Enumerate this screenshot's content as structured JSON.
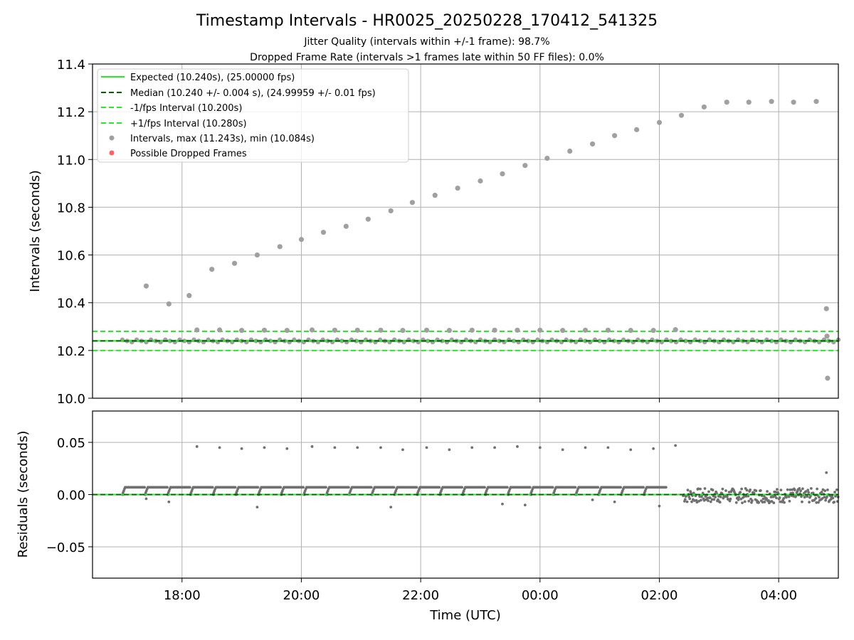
{
  "chart_data": {
    "type": "scatter",
    "title": "Timestamp Intervals - HR0025_20250228_170412_541325",
    "subtitle_lines": [
      "Jitter Quality (intervals within +/-1 frame): 98.7%",
      "Dropped Frame Rate (intervals >1 frames late within 50 FF files): 0.0%"
    ],
    "xlabel": "Time (UTC)",
    "x_tick_labels": [
      "18:00",
      "20:00",
      "22:00",
      "00:00",
      "02:00",
      "04:00"
    ],
    "x_tick_hours": [
      18,
      20,
      22,
      24,
      26,
      28
    ],
    "x_range_hours": [
      16.5,
      29.0
    ],
    "top_panel": {
      "ylabel": "Intervals (seconds)",
      "ylim": [
        10.0,
        11.4
      ],
      "y_ticks": [
        "10.0",
        "10.2",
        "10.4",
        "10.6",
        "10.8",
        "11.0",
        "11.2",
        "11.4"
      ],
      "grid": true,
      "legend_position": "top-left",
      "legend": [
        {
          "label": "Expected (10.240s), (25.00000 fps)",
          "style": "solid",
          "color": "#22ee22"
        },
        {
          "label": "Median (10.240 +/- 0.004 s), (24.99959 +/- 0.01 fps)",
          "style": "dashed",
          "color": "#006400"
        },
        {
          "label": "-1/fps Interval (10.200s)",
          "style": "dashed",
          "color": "#22ee22"
        },
        {
          "label": "+1/fps Interval (10.280s)",
          "style": "dashed",
          "color": "#22ee22"
        },
        {
          "label": "Intervals, max (11.243s), min (10.084s)",
          "style": "marker",
          "color": "#a0a0a0"
        },
        {
          "label": "Possible Dropped Frames",
          "style": "marker",
          "color": "#ff6060"
        }
      ],
      "reference_lines": {
        "expected": 10.24,
        "median": 10.24,
        "minus_one_frame": 10.2,
        "plus_one_frame": 10.28
      },
      "baseline_band": {
        "start_hour": 17.0,
        "end_hour": 29.0,
        "values": [
          10.235,
          10.245
        ]
      },
      "outliers": {
        "x_hours": [
          17.4,
          17.78,
          18.12,
          18.5,
          18.88,
          19.26,
          19.64,
          20.0,
          20.37,
          20.75,
          21.12,
          21.5,
          21.86,
          22.24,
          22.62,
          23.0,
          23.37,
          23.75,
          24.12,
          24.5,
          24.88,
          25.25,
          25.62,
          26.0,
          26.37,
          26.75,
          27.13,
          27.5,
          27.88,
          28.25,
          28.63,
          28.8,
          28.81,
          28.82
        ],
        "values": [
          10.47,
          10.395,
          10.43,
          10.54,
          10.565,
          10.6,
          10.635,
          10.665,
          10.695,
          10.72,
          10.75,
          10.785,
          10.82,
          10.85,
          10.88,
          10.91,
          10.94,
          10.975,
          11.005,
          11.035,
          11.065,
          11.1,
          11.125,
          11.155,
          11.185,
          11.22,
          11.24,
          11.24,
          11.243,
          11.24,
          11.243,
          10.375,
          10.26,
          10.084
        ]
      },
      "upper_points": {
        "x_hours": [
          18.25,
          18.63,
          19.0,
          19.38,
          19.76,
          20.18,
          20.56,
          20.94,
          21.33,
          21.7,
          22.1,
          22.48,
          22.86,
          23.24,
          23.62,
          24.0,
          24.38,
          24.76,
          25.14,
          25.52,
          25.9,
          26.27
        ],
        "values": [
          10.286,
          10.286,
          10.284,
          10.285,
          10.284,
          10.286,
          10.285,
          10.285,
          10.285,
          10.284,
          10.285,
          10.284,
          10.285,
          10.285,
          10.285,
          10.285,
          10.284,
          10.285,
          10.285,
          10.284,
          10.284,
          10.287
        ]
      }
    },
    "bottom_panel": {
      "ylabel": "Residuals (seconds)",
      "ylim": [
        -0.08,
        0.08
      ],
      "y_ticks": [
        "−0.05",
        "0.00",
        "0.05"
      ],
      "y_tick_values": [
        -0.05,
        0.0,
        0.05
      ],
      "grid": true,
      "zero_line": {
        "value": 0.0
      },
      "segments": {
        "start_hour": 17.0,
        "period_hours": 0.38,
        "count": 24,
        "level": 0.007
      },
      "dense_region": {
        "start_hour": 26.4,
        "end_hour": 29.0,
        "range": [
          -0.008,
          0.006
        ]
      },
      "upper_points": {
        "x_hours": [
          18.25,
          18.63,
          19.0,
          19.38,
          19.76,
          20.18,
          20.56,
          20.94,
          21.33,
          21.7,
          22.1,
          22.48,
          22.86,
          23.24,
          23.62,
          24.0,
          24.38,
          24.76,
          25.14,
          25.52,
          25.9,
          26.27,
          28.8
        ],
        "values": [
          0.046,
          0.045,
          0.044,
          0.045,
          0.044,
          0.046,
          0.045,
          0.045,
          0.045,
          0.043,
          0.045,
          0.043,
          0.045,
          0.045,
          0.046,
          0.045,
          0.043,
          0.045,
          0.045,
          0.043,
          0.044,
          0.047,
          0.021
        ]
      },
      "low_points": {
        "x_hours": [
          17.4,
          17.78,
          19.26,
          21.5,
          23.37,
          23.75,
          24.88,
          25.25,
          26.0
        ],
        "values": [
          -0.004,
          -0.007,
          -0.012,
          -0.012,
          -0.009,
          -0.01,
          -0.005,
          -0.007,
          -0.011
        ]
      }
    },
    "colors": {
      "expected": "#22ee22",
      "median": "#006400",
      "frame_bounds": "#22ee22",
      "points_top": "#a0a0a0",
      "points_bottom": "#707070",
      "dropped": "#ff6060",
      "grid": "#b0b0b0"
    }
  }
}
